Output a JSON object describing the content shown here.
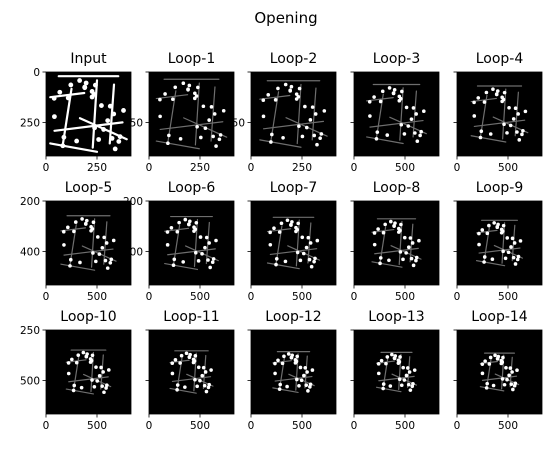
{
  "figure": {
    "suptitle": "Opening",
    "colors": {
      "image_bg": "#000000",
      "feature": "#ffffff",
      "feature_faint": "#6e6e6e",
      "axis": "#000000"
    }
  },
  "chart_data": {
    "type": "image-grid",
    "title": "Opening",
    "rows": 3,
    "cols": 5,
    "panels": [
      {
        "title": "Input",
        "xticks": [
          "0",
          "250"
        ],
        "yticks": [
          "0",
          "250"
        ],
        "image_extent": [
          0,
          420
        ],
        "content_scale": 1.0,
        "style": "lines-and-dots"
      },
      {
        "title": "Loop-1",
        "xticks": [
          "0",
          "250"
        ],
        "yticks": [
          "",
          "250"
        ],
        "image_extent": [
          0,
          430
        ],
        "content_scale": 0.92,
        "style": "dots"
      },
      {
        "title": "Loop-2",
        "xticks": [
          "0",
          "250"
        ],
        "yticks": [
          "",
          "250"
        ],
        "image_extent": [
          0,
          440
        ],
        "content_scale": 0.88,
        "style": "dots"
      },
      {
        "title": "Loop-3",
        "xticks": [
          "0",
          "500"
        ],
        "yticks": [
          "",
          ""
        ],
        "image_extent": [
          0,
          520
        ],
        "content_scale": 0.78,
        "style": "dots"
      },
      {
        "title": "Loop-4",
        "xticks": [
          "0",
          "500"
        ],
        "yticks": [
          "",
          ""
        ],
        "image_extent": [
          0,
          540
        ],
        "content_scale": 0.74,
        "style": "dots"
      },
      {
        "title": "Loop-5",
        "xticks": [
          "0",
          "500"
        ],
        "yticks": [
          "200",
          "400"
        ],
        "image_extent": [
          0,
          560
        ],
        "content_scale": 0.72,
        "style": "dots"
      },
      {
        "title": "Loop-6",
        "xticks": [
          "0",
          "500"
        ],
        "yticks": [
          "200",
          "400"
        ],
        "image_extent": [
          0,
          580
        ],
        "content_scale": 0.7,
        "style": "dots"
      },
      {
        "title": "Loop-7",
        "xticks": [
          "0",
          "500"
        ],
        "yticks": [
          "",
          ""
        ],
        "image_extent": [
          0,
          600
        ],
        "content_scale": 0.68,
        "style": "dots"
      },
      {
        "title": "Loop-8",
        "xticks": [
          "0",
          "500"
        ],
        "yticks": [
          "",
          ""
        ],
        "image_extent": [
          0,
          620
        ],
        "content_scale": 0.64,
        "style": "dots"
      },
      {
        "title": "Loop-9",
        "xticks": [
          "0",
          "500"
        ],
        "yticks": [
          "",
          ""
        ],
        "image_extent": [
          0,
          640
        ],
        "content_scale": 0.6,
        "style": "dots"
      },
      {
        "title": "Loop-10",
        "xticks": [
          "0",
          "500"
        ],
        "yticks": [
          "250",
          "500"
        ],
        "image_extent": [
          0,
          660
        ],
        "content_scale": 0.58,
        "style": "dots"
      },
      {
        "title": "Loop-11",
        "xticks": [
          "0",
          "500"
        ],
        "yticks": [
          "",
          ""
        ],
        "image_extent": [
          0,
          680
        ],
        "content_scale": 0.56,
        "style": "dots"
      },
      {
        "title": "Loop-12",
        "xticks": [
          "0",
          "500"
        ],
        "yticks": [
          "",
          ""
        ],
        "image_extent": [
          0,
          700
        ],
        "content_scale": 0.54,
        "style": "dots"
      },
      {
        "title": "Loop-13",
        "xticks": [
          "0",
          "500"
        ],
        "yticks": [
          "",
          ""
        ],
        "image_extent": [
          0,
          720
        ],
        "content_scale": 0.52,
        "style": "dots"
      },
      {
        "title": "Loop-14",
        "xticks": [
          "0",
          "500"
        ],
        "yticks": [
          "",
          ""
        ],
        "image_extent": [
          0,
          740
        ],
        "content_scale": 0.5,
        "style": "dots"
      }
    ]
  }
}
